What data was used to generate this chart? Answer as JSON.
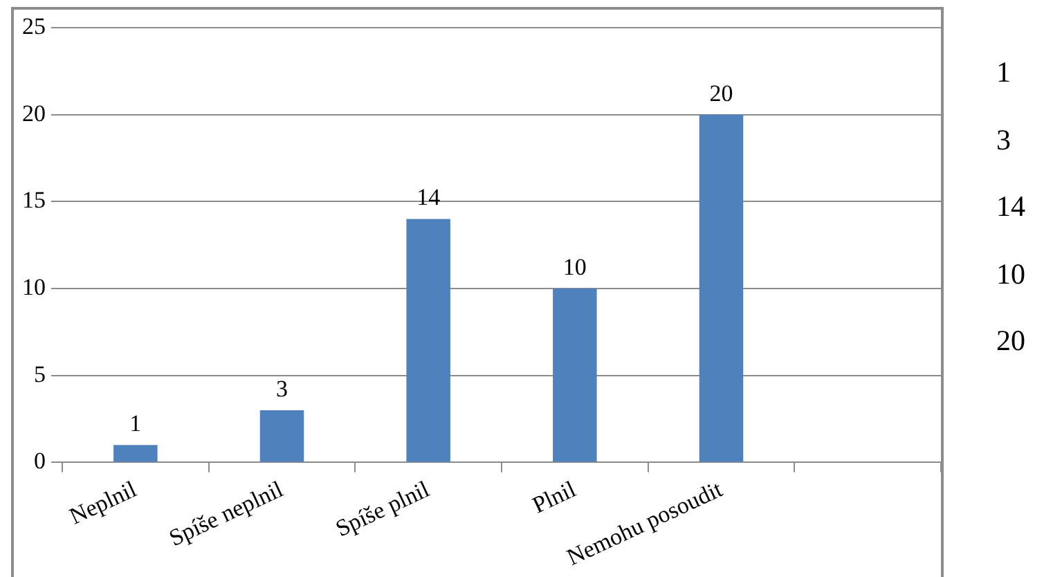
{
  "chart_data": {
    "type": "bar",
    "categories": [
      "Neplnil",
      "Spíše neplnil",
      "Spíše plnil",
      "Plnil",
      "Nemohu posoudit",
      null
    ],
    "values": [
      1,
      3,
      14,
      10,
      20,
      null
    ],
    "color": "#4f81bd",
    "annotations": [
      "1",
      "3",
      "14",
      "10",
      "20"
    ],
    "ylim": [
      0,
      25
    ],
    "yticks": [
      0,
      5,
      10,
      15,
      20,
      25
    ],
    "grid": "y",
    "data_labels": true,
    "legend": false
  }
}
